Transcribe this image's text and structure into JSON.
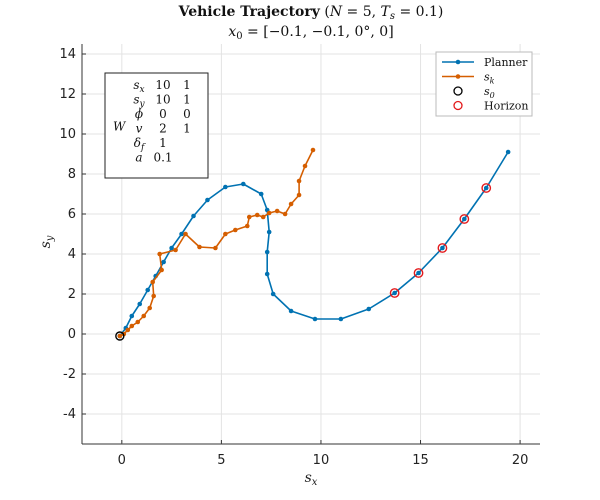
{
  "chart_data": {
    "type": "line",
    "title": "Vehicle Trajectory (N = 5, T_s = 0.1)",
    "subtitle": "x_0 = [−0.1, −0.1, 0°, 0]",
    "xlabel": "s_x",
    "ylabel": "s_y",
    "xlim": [
      -2,
      21
    ],
    "ylim": [
      -5.5,
      14.5
    ],
    "xticks": [
      0,
      5,
      10,
      15,
      20
    ],
    "yticks": [
      14,
      12,
      10,
      8,
      6,
      4,
      2,
      0,
      -2,
      -4
    ],
    "grid": true,
    "legend_position": "top-right",
    "colors": {
      "planner": "#0072b2",
      "sk": "#d55e00",
      "s0": "#000000",
      "horizon": "#e31a1c"
    },
    "series": [
      {
        "name": "Planner",
        "x": [
          -0.1,
          0.2,
          0.5,
          0.9,
          1.3,
          1.7,
          2.1,
          2.5,
          3.0,
          3.6,
          4.3,
          5.2,
          6.1,
          7.0,
          7.3,
          7.4,
          7.3,
          7.3,
          7.6,
          8.5,
          9.7,
          11.0,
          12.4,
          13.7,
          14.9,
          16.1,
          17.2,
          18.3,
          19.4
        ],
        "y": [
          -0.1,
          0.3,
          0.9,
          1.5,
          2.2,
          2.9,
          3.6,
          4.3,
          5.0,
          5.9,
          6.7,
          7.35,
          7.5,
          7.0,
          6.2,
          5.1,
          4.1,
          3.0,
          2.0,
          1.15,
          0.75,
          0.75,
          1.25,
          2.05,
          3.05,
          4.3,
          5.75,
          7.3,
          9.1
        ]
      },
      {
        "name": "s_k",
        "x": [
          -0.1,
          0.1,
          0.3,
          0.5,
          0.8,
          1.1,
          1.4,
          1.6,
          1.55,
          2.0,
          1.9,
          2.7,
          3.2,
          3.9,
          4.7,
          5.2,
          5.7,
          6.3,
          6.4,
          6.8,
          7.1,
          7.4,
          7.8,
          8.2,
          8.5,
          8.9,
          8.9,
          9.2,
          9.6
        ],
        "y": [
          -0.1,
          0.0,
          0.2,
          0.4,
          0.6,
          0.9,
          1.3,
          1.9,
          2.6,
          3.2,
          4.0,
          4.2,
          5.0,
          4.35,
          4.3,
          5.0,
          5.2,
          5.4,
          5.85,
          5.95,
          5.85,
          6.05,
          6.15,
          6.0,
          6.5,
          6.95,
          7.65,
          8.4,
          9.2
        ]
      },
      {
        "name": "s_0",
        "x": [
          -0.1
        ],
        "y": [
          -0.1
        ]
      },
      {
        "name": "Horizon",
        "x": [
          13.7,
          14.9,
          16.1,
          17.2,
          18.3
        ],
        "y": [
          2.05,
          3.05,
          4.3,
          5.75,
          7.3
        ]
      }
    ],
    "weights_table": {
      "label": "W",
      "rows": [
        {
          "sym": "s_x",
          "a": "10",
          "b": "1"
        },
        {
          "sym": "s_y",
          "a": "10",
          "b": "1"
        },
        {
          "sym": "ϕ",
          "a": "0",
          "b": "0"
        },
        {
          "sym": "v",
          "a": "2",
          "b": "1"
        },
        {
          "sym": "δ_f",
          "a": "1",
          "b": ""
        },
        {
          "sym": "a",
          "a": "0.1",
          "b": ""
        }
      ]
    }
  }
}
